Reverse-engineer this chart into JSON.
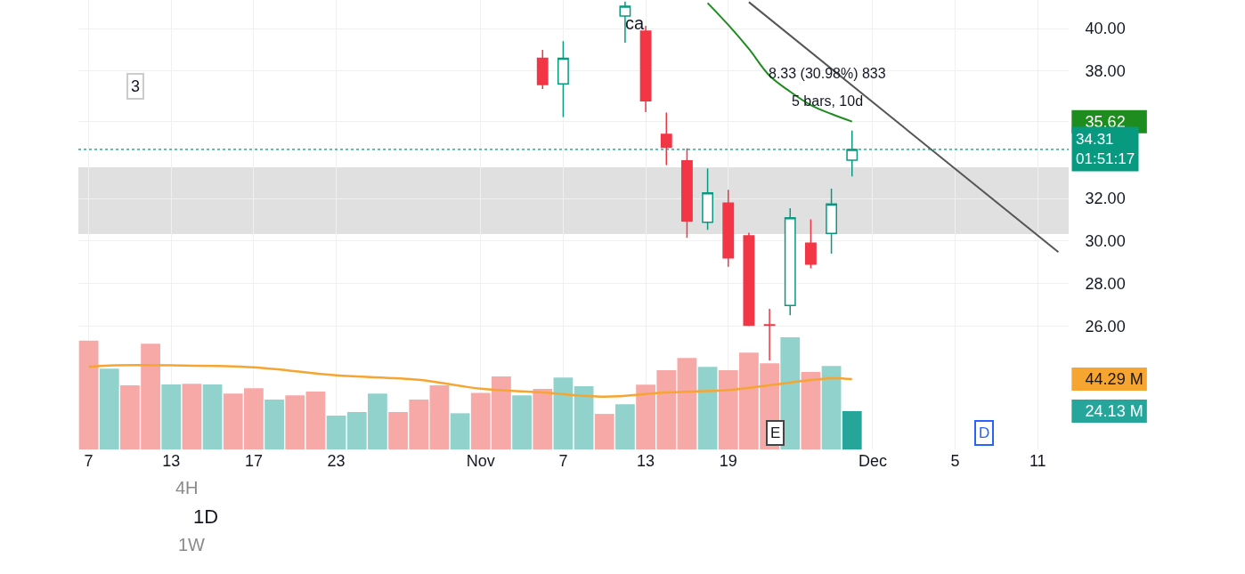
{
  "chart_data": {
    "type": "candlestick",
    "categories": [
      "7",
      null,
      null,
      null,
      "13",
      null,
      null,
      null,
      "17",
      null,
      null,
      null,
      "23",
      null,
      null,
      null,
      null,
      null,
      null,
      "Nov",
      null,
      null,
      null,
      "7",
      null,
      null,
      null,
      "13",
      null,
      null,
      null,
      "19",
      null,
      null,
      null,
      null,
      null,
      null,
      "Dec",
      null,
      null,
      null,
      "5",
      null,
      null,
      null,
      "11",
      null
    ],
    "ohlc": [
      null,
      null,
      null,
      null,
      null,
      null,
      null,
      null,
      null,
      null,
      null,
      null,
      null,
      null,
      null,
      null,
      null,
      null,
      null,
      null,
      null,
      null,
      [
        38.6,
        39.0,
        37.15,
        37.36
      ],
      [
        37.39,
        39.4,
        35.83,
        38.6
      ],
      null,
      null,
      [
        40.59,
        41.27,
        39.33,
        41.05
      ],
      [
        39.87,
        40.13,
        36.07,
        36.6
      ],
      [
        35.02,
        36.04,
        33.57,
        34.41
      ],
      [
        33.77,
        34.36,
        30.15,
        30.95
      ],
      [
        30.88,
        33.42,
        30.53,
        32.27
      ],
      [
        31.79,
        32.41,
        28.79,
        29.21
      ],
      [
        30.25,
        30.39,
        26.0,
        26.04
      ],
      [
        26.06,
        26.81,
        24.39,
        26.04
      ],
      [
        26.97,
        31.54,
        26.51,
        31.09
      ],
      [
        29.9,
        31.02,
        28.72,
        28.92
      ],
      [
        30.36,
        32.47,
        29.41,
        31.74
      ],
      [
        33.81,
        35.2,
        33.04,
        34.31
      ],
      null,
      null,
      null,
      null,
      null,
      null,
      null,
      null,
      null,
      null
    ],
    "series": [
      {
        "type": "bar",
        "axis": "y2",
        "values": [
          68.6,
          50.9,
          40.4,
          66.6,
          41.0,
          41.4,
          41.0,
          35.2,
          38.6,
          31.4,
          34.1,
          36.5,
          21.3,
          23.6,
          35.2,
          23.6,
          31.4,
          40.4,
          22.8,
          35.7,
          46.0,
          34.1,
          38.2,
          45.3,
          39.8,
          22.4,
          28.5,
          40.8,
          49.9,
          57.6,
          52.0,
          49.9,
          61.0,
          54.3,
          70.7,
          48.8,
          52.6,
          24.13,
          null,
          null,
          null,
          null,
          null,
          null,
          null,
          null,
          null,
          null
        ],
        "colors": [
          "#f7a9a7",
          "#92d2cc",
          "#f7a9a7",
          "#f7a9a7",
          "#92d2cc",
          "#f7a9a7",
          "#92d2cc",
          "#f7a9a7",
          "#f7a9a7",
          "#92d2cc",
          "#f7a9a7",
          "#f7a9a7",
          "#92d2cc",
          "#92d2cc",
          "#92d2cc",
          "#f7a9a7",
          "#f7a9a7",
          "#f7a9a7",
          "#92d2cc",
          "#f7a9a7",
          "#f7a9a7",
          "#92d2cc",
          "#f7a9a7",
          "#92d2cc",
          "#92d2cc",
          "#f7a9a7",
          "#92d2cc",
          "#f7a9a7",
          "#f7a9a7",
          "#f7a9a7",
          "#92d2cc",
          "#f7a9a7",
          "#f7a9a7",
          "#f7a9a7",
          "#92d2cc",
          "#f7a9a7",
          "#92d2cc",
          "#26a69a",
          null,
          null,
          null,
          null,
          null,
          null,
          null,
          null,
          null,
          null
        ]
      },
      {
        "type": "line",
        "axis": "y2",
        "color": "#f7a531",
        "values": [
          52.0,
          52.9,
          null,
          null,
          53.0,
          null,
          null,
          null,
          51.8,
          null,
          null,
          null,
          46.7,
          null,
          null,
          null,
          43.9,
          null,
          null,
          38.3,
          null,
          null,
          35.9,
          null,
          null,
          33.3,
          null,
          null,
          35.9,
          null,
          null,
          37.4,
          null,
          null,
          42.1,
          null,
          44.9,
          44.29,
          null,
          null,
          null,
          null,
          null,
          null,
          null,
          null,
          null,
          null
        ]
      },
      {
        "type": "line",
        "color": "#1e8c1e",
        "values": [
          null,
          null,
          null,
          null,
          null,
          null,
          null,
          null,
          null,
          null,
          null,
          null,
          null,
          null,
          null,
          null,
          null,
          null,
          null,
          null,
          null,
          null,
          null,
          null,
          null,
          null,
          null,
          null,
          null,
          null,
          41.2,
          40.17,
          39.04,
          37.78,
          37.03,
          36.4,
          35.98,
          35.62,
          null,
          null,
          null,
          null,
          null,
          null,
          null,
          null,
          null,
          null
        ]
      },
      {
        "type": "line",
        "color": "#555555",
        "values": [
          null,
          null,
          null,
          null,
          null,
          null,
          null,
          null,
          null,
          null,
          null,
          null,
          null,
          null,
          null,
          null,
          null,
          null,
          null,
          null,
          null,
          null,
          null,
          null,
          null,
          null,
          null,
          null,
          null,
          null,
          null,
          null,
          41.24,
          null,
          null,
          null,
          null,
          null,
          null,
          null,
          null,
          null,
          null,
          null,
          null,
          null,
          null,
          29.48
        ]
      }
    ],
    "ylim": [
      20.2,
      41.34
    ],
    "yticks": [
      {
        "value": 26,
        "label": "26.00"
      },
      {
        "value": 28,
        "label": "28.00"
      },
      {
        "value": 30,
        "label": "30.00"
      },
      {
        "value": 32,
        "label": "32.00"
      },
      {
        "value": 38,
        "label": "38.00"
      },
      {
        "value": 40,
        "label": "40.00"
      },
      {
        "value": 35.62,
        "label": "35.62"
      }
    ],
    "y2lim": [
      0,
      283.4
    ],
    "y2ticks": [
      {
        "value": 44.29,
        "label": "44.29 M"
      },
      {
        "value": 24.13,
        "label": "24.13 M"
      }
    ],
    "ref_lines": [
      {
        "axis": "y",
        "value": 34.31,
        "label": "34.31\n01:51:17",
        "color": "#089981",
        "line_style": "dotted"
      }
    ],
    "bands": [
      {
        "axis": "y",
        "from": 30.33,
        "to": 33.47,
        "color": "#e0e0e0"
      }
    ],
    "annotations": [
      "8.33 (30.98%) 833",
      "5 bars, 10d",
      "ca",
      "3",
      "E",
      "D",
      "1D",
      "4H",
      "1W"
    ],
    "grid": true
  }
}
